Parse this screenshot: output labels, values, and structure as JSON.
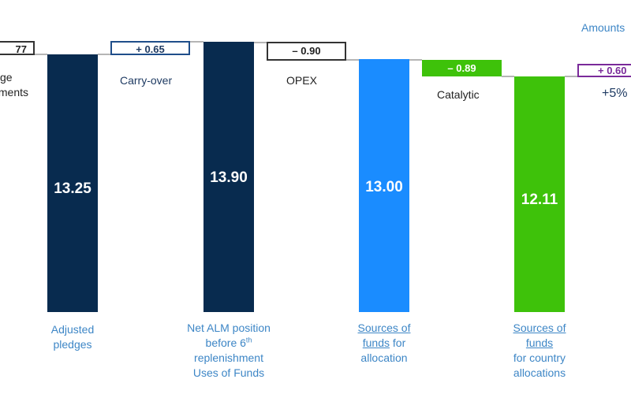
{
  "header": {
    "amounts_label": "Amounts"
  },
  "chart_data": {
    "type": "waterfall",
    "title": "",
    "ylabel": "",
    "xlabel": "",
    "steps": [
      {
        "kind": "delta",
        "value_text": "77",
        "label_lines": [
          "ge",
          "ments"
        ],
        "color": "#ffffff",
        "border": "#333333"
      },
      {
        "kind": "total",
        "value": 13.25,
        "value_text": "13.25",
        "label_lines": [
          "Adjusted",
          "pledges"
        ],
        "color": "#082b4f"
      },
      {
        "kind": "delta",
        "value": 0.65,
        "value_text": "+ 0.65",
        "label_lines": [
          "Carry-over"
        ],
        "color": "#ffffff",
        "border": "#1f4e8a"
      },
      {
        "kind": "total",
        "value": 13.9,
        "value_text": "13.90",
        "label_lines": [
          "Net ALM position",
          "before 6th",
          "replenishment",
          "Uses of Funds"
        ],
        "color": "#082b4f"
      },
      {
        "kind": "delta",
        "value": -0.9,
        "value_text": "– 0.90",
        "label_lines": [
          "OPEX"
        ],
        "color": "#ffffff",
        "border": "#333333"
      },
      {
        "kind": "total",
        "value": 13.0,
        "value_text": "13.00",
        "label_lines": [
          "Sources of",
          "funds for",
          "allocation"
        ],
        "color": "#1a8cff"
      },
      {
        "kind": "delta",
        "value": -0.89,
        "value_text": "– 0.89",
        "label_lines": [
          "Catalytic"
        ],
        "color": "#3ec20a"
      },
      {
        "kind": "total",
        "value": 12.11,
        "value_text": "12.11",
        "label_lines": [
          "Sources of",
          "funds",
          "for country",
          "allocations"
        ],
        "color": "#3ec20a"
      },
      {
        "kind": "delta",
        "value": 0.6,
        "value_text": "+ 0.60",
        "label_lines": [
          "+5%"
        ],
        "color": "#ffffff",
        "border": "#7a2a9a"
      }
    ]
  },
  "labels": {
    "cut_left_1": "ge",
    "cut_left_2": "ments",
    "cut_left_val": "77",
    "adjusted": "Adjusted",
    "pledges": "pledges",
    "carry_over": "Carry-over",
    "carry_val": "+ 0.65",
    "net_alm_1": "Net ALM position",
    "net_alm_2a": "before 6",
    "net_alm_2sup": "th",
    "net_alm_3": "replenishment",
    "net_alm_4": "Uses of Funds",
    "opex": "OPEX",
    "opex_val": "– 0.90",
    "sof1_a": "Sources of",
    "sof1_b": "funds",
    "sof1_b2": " for",
    "sof1_c": "allocation",
    "catalytic": "Catalytic",
    "catalytic_val": "– 0.89",
    "sof2_a": "Sources of",
    "sof2_b": "funds",
    "sof2_c": "for country",
    "sof2_d": "allocations",
    "plus5": "+5%",
    "plus_val": "+ 0.60"
  }
}
